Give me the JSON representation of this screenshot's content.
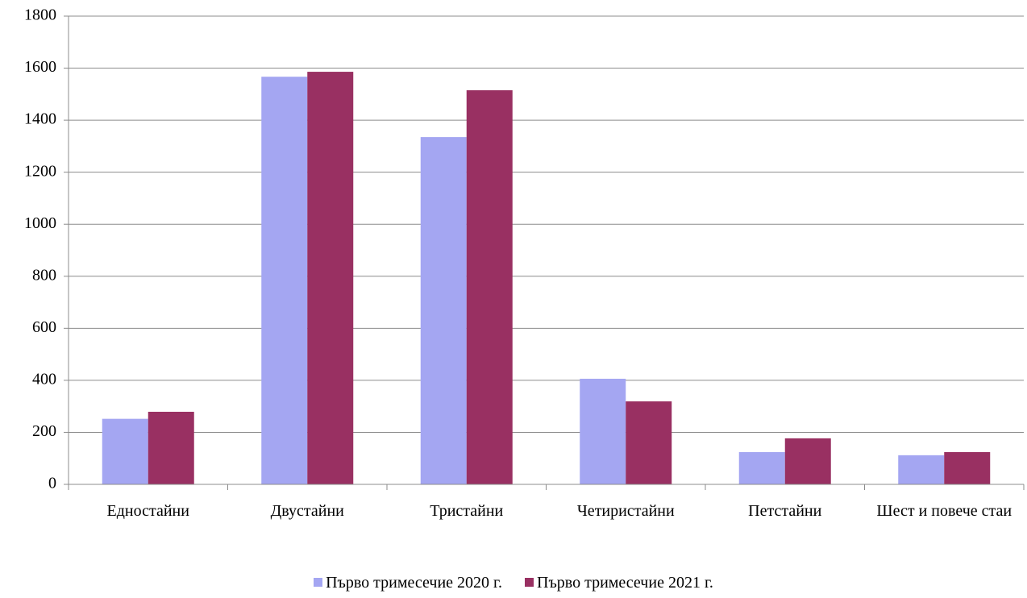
{
  "chart_data": {
    "type": "bar",
    "categories": [
      "Едностайни",
      "Двустайни",
      "Тристайни",
      "Четиристайни",
      "Петстайни",
      "Шест и повече стаи"
    ],
    "series": [
      {
        "name": "Първо тримесечие 2020 г.",
        "color": "#a4a6f2",
        "values": [
          252,
          1567,
          1335,
          406,
          124,
          112
        ]
      },
      {
        "name": "Първо тримесечие 2021 г.",
        "color": "#993062",
        "values": [
          279,
          1586,
          1515,
          319,
          177,
          124
        ]
      }
    ],
    "ylim": [
      0,
      1800
    ],
    "yticks": [
      0,
      200,
      400,
      600,
      800,
      1000,
      1200,
      1400,
      1600,
      1800
    ],
    "grid": true
  }
}
